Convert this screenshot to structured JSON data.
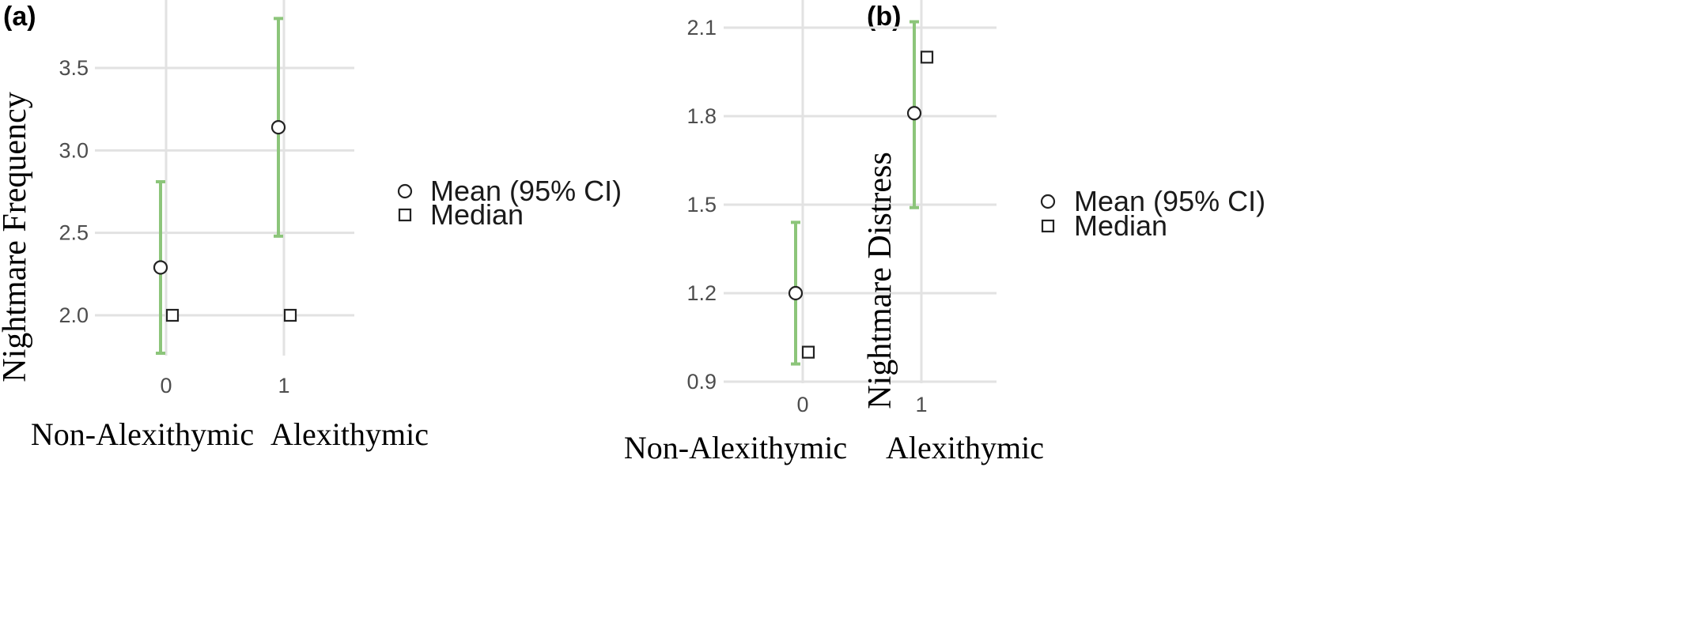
{
  "chart_data": [
    {
      "panel": "(a)",
      "type": "scatter",
      "ylabel": "Nightmare Frequency",
      "xlabel": "",
      "x_ticks": [
        "0",
        "1"
      ],
      "categories": [
        "Non-Alexithymic",
        "Alexithymic"
      ],
      "y_ticks": [
        "2.0",
        "2.5",
        "3.0",
        "3.5"
      ],
      "ylim": [
        1.75,
        3.85
      ],
      "grid": true,
      "legend_position": "right",
      "legend": [
        {
          "label": "Mean (95% CI)",
          "marker": "circle"
        },
        {
          "label": "Median",
          "marker": "square"
        }
      ],
      "series": [
        {
          "name": "Mean (95% CI)",
          "marker": "circle",
          "values": [
            2.29,
            3.14
          ],
          "ci_low": [
            1.77,
            2.48
          ],
          "ci_high": [
            2.81,
            3.8
          ]
        },
        {
          "name": "Median",
          "marker": "square",
          "values": [
            2.0,
            2.0
          ]
        }
      ],
      "ci_color": "#8cc57a"
    },
    {
      "panel": "(b)",
      "type": "scatter",
      "ylabel": "Nightmare Distress",
      "xlabel": "",
      "x_ticks": [
        "0",
        "1"
      ],
      "categories": [
        "Non-Alexithymic",
        "Alexithymic"
      ],
      "y_ticks": [
        "0.9",
        "1.2",
        "1.5",
        "1.8",
        "2.1"
      ],
      "ylim": [
        0.89,
        2.18
      ],
      "grid": true,
      "legend_position": "right",
      "legend": [
        {
          "label": "Mean (95% CI)",
          "marker": "circle"
        },
        {
          "label": "Median",
          "marker": "square"
        }
      ],
      "series": [
        {
          "name": "Mean (95% CI)",
          "marker": "circle",
          "values": [
            1.2,
            1.81
          ],
          "ci_low": [
            0.96,
            1.49
          ],
          "ci_high": [
            1.44,
            2.12
          ]
        },
        {
          "name": "Median",
          "marker": "square",
          "values": [
            1.0,
            2.0
          ]
        }
      ],
      "ci_color": "#8cc57a"
    }
  ]
}
